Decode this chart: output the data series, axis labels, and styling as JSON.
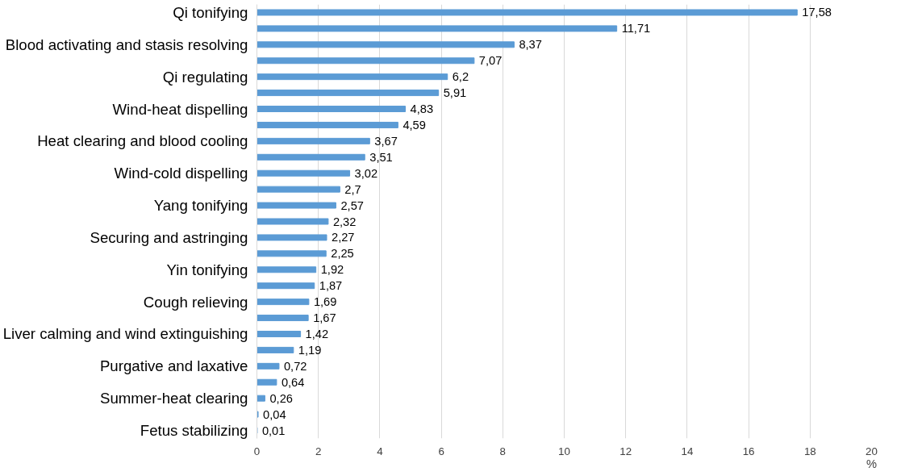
{
  "chart_data": {
    "type": "bar",
    "orientation": "horizontal",
    "xlabel": "%",
    "categories": [
      "Qi tonifying",
      null,
      "Blood activating and stasis resolving",
      null,
      "Qi regulating",
      null,
      "Wind-heat dispelling",
      null,
      "Heat clearing and blood cooling",
      null,
      "Wind-cold dispelling",
      null,
      "Yang tonifying",
      null,
      "Securing and astringing",
      null,
      "Yin tonifying",
      null,
      "Cough relieving",
      null,
      "Liver calming and wind extinguishing",
      null,
      "Purgative and laxative",
      null,
      "Summer-heat clearing",
      null,
      "Fetus stabilizing"
    ],
    "values": [
      17.58,
      11.71,
      8.37,
      7.07,
      6.2,
      5.91,
      4.83,
      4.59,
      3.67,
      3.51,
      3.02,
      2.7,
      2.57,
      2.32,
      2.27,
      2.25,
      1.92,
      1.87,
      1.69,
      1.67,
      1.42,
      1.19,
      0.72,
      0.64,
      0.26,
      0.04,
      0.01
    ],
    "value_labels": [
      "17,58",
      "11,71",
      "8,37",
      "7,07",
      "6,2",
      "5,91",
      "4,83",
      "4,59",
      "3,67",
      "3,51",
      "3,02",
      "2,7",
      "2,57",
      "2,32",
      "2,27",
      "2,25",
      "1,92",
      "1,87",
      "1,69",
      "1,67",
      "1,42",
      "1,19",
      "0,72",
      "0,64",
      "0,26",
      "0,04",
      "0,01"
    ],
    "color": "#5b9bd5",
    "xlim": [
      0,
      20
    ],
    "xticks": [
      0,
      2,
      4,
      6,
      8,
      10,
      12,
      14,
      16,
      18,
      20
    ],
    "grid": "x"
  }
}
